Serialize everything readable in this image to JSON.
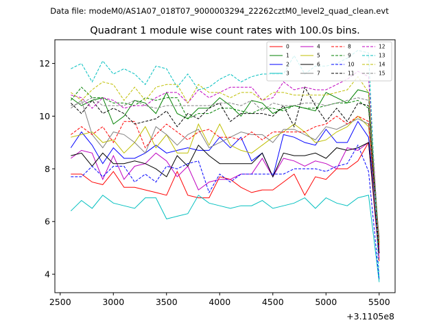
{
  "suptitle": "Data file: modeM0/AS1A07_018T07_9000003294_22262cztM0_level2_quad_clean.evt",
  "chart_data": {
    "type": "line",
    "title": "Quadrant 1 module wise count rates with 100.0s bins.",
    "xlabel": "",
    "ylabel": "",
    "x_offset_label": "+3.1105e8",
    "xlim": [
      2450,
      5650
    ],
    "ylim": [
      3.3,
      12.9
    ],
    "xticks": [
      2500,
      3000,
      3500,
      4000,
      4500,
      5000,
      5500
    ],
    "yticks": [
      4,
      6,
      8,
      10,
      12
    ],
    "grid": false,
    "legend_position": "top-right",
    "x": [
      2600,
      2700,
      2800,
      2900,
      3000,
      3100,
      3200,
      3300,
      3400,
      3500,
      3600,
      3700,
      3800,
      3900,
      4000,
      4100,
      4200,
      4300,
      4400,
      4500,
      4600,
      4700,
      4800,
      4900,
      5000,
      5100,
      5200,
      5300,
      5400,
      5500
    ],
    "series": [
      {
        "name": "0",
        "color": "#ff0000",
        "style": "solid",
        "values": [
          7.8,
          7.8,
          7.5,
          7.4,
          7.9,
          7.3,
          7.3,
          7.2,
          7.1,
          7.0,
          7.9,
          7.0,
          6.9,
          6.9,
          7.7,
          7.6,
          7.3,
          7.1,
          7.2,
          7.2,
          7.5,
          7.8,
          7.0,
          7.7,
          7.6,
          8.0,
          8.0,
          8.3,
          9.0,
          4.5
        ]
      },
      {
        "name": "1",
        "color": "#008000",
        "style": "solid",
        "values": [
          10.7,
          10.4,
          10.6,
          10.7,
          9.7,
          10.0,
          10.6,
          10.5,
          10.1,
          10.9,
          10.1,
          9.9,
          10.3,
          10.3,
          10.7,
          10.4,
          10.0,
          10.6,
          10.5,
          10.1,
          10.3,
          10.4,
          10.3,
          10.2,
          10.9,
          10.7,
          10.5,
          11.0,
          10.9,
          5.2
        ]
      },
      {
        "name": "2",
        "color": "#0000ff",
        "style": "solid",
        "values": [
          8.8,
          9.4,
          8.9,
          8.2,
          8.8,
          8.4,
          8.4,
          8.6,
          8.9,
          8.6,
          8.7,
          8.8,
          8.7,
          8.7,
          9.2,
          8.8,
          9.2,
          8.3,
          8.6,
          7.7,
          9.3,
          9.2,
          9.0,
          8.9,
          9.5,
          9.0,
          9.0,
          9.8,
          9.2,
          5.4
        ]
      },
      {
        "name": "3",
        "color": "#00bfbf",
        "style": "solid",
        "values": [
          6.4,
          6.8,
          6.5,
          7.0,
          6.7,
          6.6,
          6.5,
          6.9,
          6.9,
          6.1,
          6.2,
          6.3,
          7.0,
          6.7,
          6.6,
          6.5,
          6.6,
          6.6,
          6.8,
          6.5,
          6.6,
          6.7,
          6.9,
          6.5,
          6.9,
          6.7,
          6.6,
          6.9,
          7.0,
          3.7
        ]
      },
      {
        "name": "4",
        "color": "#bf00bf",
        "style": "solid",
        "values": [
          8.4,
          8.7,
          8.6,
          7.6,
          8.5,
          7.6,
          8.1,
          8.2,
          8.6,
          8.3,
          7.7,
          8.1,
          7.2,
          7.5,
          7.6,
          7.6,
          7.8,
          7.8,
          8.4,
          7.7,
          8.4,
          8.3,
          8.1,
          8.3,
          8.2,
          8.0,
          8.8,
          8.7,
          9.0,
          4.6
        ]
      },
      {
        "name": "5",
        "color": "#bfbf00",
        "style": "solid",
        "values": [
          9.2,
          9.3,
          9.4,
          9.0,
          9.1,
          8.6,
          9.0,
          9.6,
          8.8,
          9.3,
          8.6,
          8.6,
          9.7,
          8.9,
          9.7,
          8.9,
          8.7,
          8.6,
          8.9,
          9.2,
          9.4,
          9.7,
          9.4,
          9.0,
          9.1,
          9.4,
          9.6,
          10.0,
          9.6,
          5.3
        ]
      },
      {
        "name": "6",
        "color": "#000000",
        "style": "solid",
        "values": [
          8.5,
          8.6,
          8.1,
          8.6,
          8.2,
          8.2,
          8.3,
          8.2,
          8.0,
          7.7,
          8.5,
          8.1,
          8.9,
          8.5,
          8.2,
          8.2,
          8.2,
          8.2,
          8.6,
          7.7,
          8.6,
          8.5,
          8.5,
          8.6,
          8.4,
          8.8,
          8.7,
          8.8,
          9.0,
          4.8
        ]
      },
      {
        "name": "7",
        "color": "#808080",
        "style": "solid",
        "values": [
          10.3,
          10.6,
          9.3,
          8.8,
          9.4,
          9.3,
          9.0,
          8.6,
          9.6,
          9.3,
          8.9,
          9.3,
          9.5,
          8.8,
          9.0,
          9.2,
          9.4,
          9.3,
          9.3,
          9.0,
          9.5,
          9.5,
          9.3,
          9.1,
          9.6,
          9.5,
          9.7,
          9.9,
          9.7,
          5.4
        ]
      },
      {
        "name": "8",
        "color": "#ff0000",
        "style": "dashed",
        "values": [
          9.3,
          9.6,
          9.3,
          9.6,
          9.0,
          9.8,
          9.8,
          8.8,
          9.3,
          9.7,
          9.4,
          9.1,
          9.4,
          9.5,
          9.2,
          9.2,
          9.1,
          9.4,
          9.1,
          9.4,
          9.4,
          9.4,
          9.4,
          9.6,
          9.7,
          10.0,
          9.7,
          10.0,
          9.8,
          5.1
        ]
      },
      {
        "name": "9",
        "color": "#008000",
        "style": "dashed",
        "values": [
          10.6,
          11.1,
          10.7,
          10.7,
          10.5,
          10.5,
          10.4,
          10.7,
          10.6,
          10.7,
          10.7,
          9.9,
          10.1,
          10.1,
          10.3,
          10.3,
          10.2,
          10.1,
          10.3,
          10.3,
          10.2,
          10.4,
          10.3,
          10.3,
          10.4,
          10.5,
          10.5,
          10.6,
          10.3,
          5.2
        ]
      },
      {
        "name": "10",
        "color": "#0000ff",
        "style": "dashed",
        "values": [
          7.7,
          7.7,
          8.1,
          7.7,
          8.1,
          8.1,
          7.5,
          7.8,
          7.5,
          8.1,
          8.0,
          8.2,
          8.3,
          7.1,
          7.8,
          7.5,
          7.8,
          7.8,
          7.8,
          7.8,
          7.8,
          8.0,
          8.0,
          8.0,
          7.9,
          8.1,
          8.2,
          8.9,
          7.9,
          3.8
        ]
      },
      {
        "name": "11",
        "color": "#000000",
        "style": "dashed",
        "values": [
          10.5,
          10.1,
          10.6,
          10.1,
          10.3,
          10.1,
          9.7,
          9.8,
          9.9,
          10.2,
          9.6,
          10.1,
          9.9,
          10.3,
          10.5,
          9.8,
          10.1,
          10.1,
          10.1,
          10.0,
          10.4,
          9.6,
          11.1,
          10.4,
          9.8,
          10.3,
          9.8,
          10.5,
          10.4,
          4.8
        ]
      },
      {
        "name": "12",
        "color": "#bf00bf",
        "style": "dashed",
        "values": [
          10.8,
          10.7,
          10.3,
          10.7,
          10.6,
          10.3,
          10.4,
          10.4,
          10.7,
          10.9,
          10.9,
          10.5,
          11.0,
          10.7,
          10.9,
          11.1,
          11.1,
          11.1,
          10.6,
          10.7,
          11.3,
          11.0,
          11.1,
          11.0,
          11.0,
          11.2,
          11.4,
          11.7,
          11.5,
          5.0
        ]
      },
      {
        "name": "13",
        "color": "#00bfbf",
        "style": "dashed",
        "values": [
          11.8,
          12.0,
          11.3,
          12.1,
          11.6,
          11.8,
          11.6,
          11.2,
          11.9,
          11.8,
          11.1,
          11.6,
          11.0,
          11.1,
          11.4,
          11.6,
          11.3,
          11.5,
          11.6,
          11.6,
          11.6,
          12.3,
          11.6,
          11.9,
          11.9,
          12.0,
          12.2,
          12.5,
          12.4,
          3.8
        ]
      },
      {
        "name": "14",
        "color": "#bfbf00",
        "style": "dashed",
        "values": [
          10.9,
          10.6,
          11.0,
          11.3,
          11.2,
          10.6,
          11.1,
          10.6,
          11.1,
          11.2,
          11.2,
          10.5,
          11.2,
          10.9,
          10.9,
          10.7,
          10.9,
          10.9,
          10.6,
          10.9,
          10.9,
          10.8,
          10.8,
          10.8,
          10.8,
          10.9,
          11.0,
          11.5,
          10.9,
          5.1
        ]
      },
      {
        "name": "15",
        "color": "#808080",
        "style": "dashed",
        "values": [
          10.4,
          10.5,
          10.7,
          10.4,
          10.4,
          10.4,
          10.6,
          10.4,
          10.3,
          10.4,
          10.4,
          10.4,
          10.4,
          10.4,
          10.5,
          10.5,
          10.4,
          10.6,
          10.2,
          10.5,
          10.4,
          10.4,
          10.5,
          10.5,
          10.4,
          10.5,
          10.6,
          10.7,
          10.6,
          5.3
        ]
      }
    ]
  }
}
